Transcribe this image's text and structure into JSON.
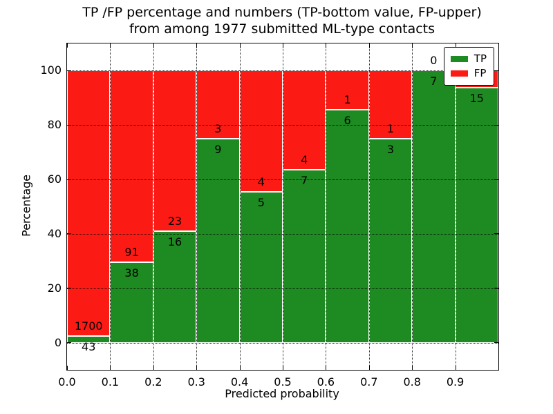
{
  "colors": {
    "tp": "#1e8a22",
    "fp": "#fc1a14",
    "axis": "#000000",
    "background": "#ffffff"
  },
  "title": {
    "line1": "TP /FP percentage and numbers (TP-bottom value, FP-upper)",
    "line2": "from among 1977 submitted ML-type contacts"
  },
  "legend": {
    "items": [
      {
        "label": "TP",
        "color_key": "tp"
      },
      {
        "label": "FP",
        "color_key": "fp"
      }
    ]
  },
  "chart_data": {
    "type": "bar",
    "stacked": true,
    "normalized_to_percent": true,
    "title": "TP /FP percentage and numbers (TP-bottom value, FP-upper) from among 1977 submitted ML-type contacts",
    "xlabel": "Predicted probability",
    "ylabel": "Percentage",
    "xlim": [
      0.0,
      1.0
    ],
    "ylim": [
      -10,
      110
    ],
    "grid": "dotted",
    "legend_position": "upper right",
    "bin_width": 0.1,
    "x_ticks": [
      {
        "value": 0.0,
        "label": "0.0"
      },
      {
        "value": 0.1,
        "label": "0.1"
      },
      {
        "value": 0.2,
        "label": "0.2"
      },
      {
        "value": 0.3,
        "label": "0.3"
      },
      {
        "value": 0.4,
        "label": "0.4"
      },
      {
        "value": 0.5,
        "label": "0.5"
      },
      {
        "value": 0.6,
        "label": "0.6"
      },
      {
        "value": 0.7,
        "label": "0.7"
      },
      {
        "value": 0.8,
        "label": "0.8"
      },
      {
        "value": 0.9,
        "label": "0.9"
      }
    ],
    "y_ticks": [
      {
        "value": 0,
        "label": "0"
      },
      {
        "value": 20,
        "label": "20"
      },
      {
        "value": 40,
        "label": "40"
      },
      {
        "value": 60,
        "label": "60"
      },
      {
        "value": 80,
        "label": "80"
      },
      {
        "value": 100,
        "label": "100"
      }
    ],
    "series": [
      {
        "name": "TP",
        "color": "#1e8a22",
        "position": "bottom"
      },
      {
        "name": "FP",
        "color": "#fc1a14",
        "position": "top"
      }
    ],
    "bins": [
      {
        "x0": 0.0,
        "x1": 0.1,
        "tp": 43,
        "fp": 1700,
        "tp_pct": 2.5
      },
      {
        "x0": 0.1,
        "x1": 0.2,
        "tp": 38,
        "fp": 91,
        "tp_pct": 29.5
      },
      {
        "x0": 0.2,
        "x1": 0.3,
        "tp": 16,
        "fp": 23,
        "tp_pct": 41.0
      },
      {
        "x0": 0.3,
        "x1": 0.4,
        "tp": 9,
        "fp": 3,
        "tp_pct": 75.0
      },
      {
        "x0": 0.4,
        "x1": 0.5,
        "tp": 5,
        "fp": 4,
        "tp_pct": 55.6
      },
      {
        "x0": 0.5,
        "x1": 0.6,
        "tp": 7,
        "fp": 4,
        "tp_pct": 63.6
      },
      {
        "x0": 0.6,
        "x1": 0.7,
        "tp": 6,
        "fp": 1,
        "tp_pct": 85.7
      },
      {
        "x0": 0.7,
        "x1": 0.8,
        "tp": 3,
        "fp": 1,
        "tp_pct": 75.0
      },
      {
        "x0": 0.8,
        "x1": 0.9,
        "tp": 7,
        "fp": 0,
        "tp_pct": 100.0
      },
      {
        "x0": 0.9,
        "x1": 1.0,
        "tp": 15,
        "fp": 1,
        "tp_pct": 93.8
      }
    ],
    "total_contacts": 1977
  }
}
